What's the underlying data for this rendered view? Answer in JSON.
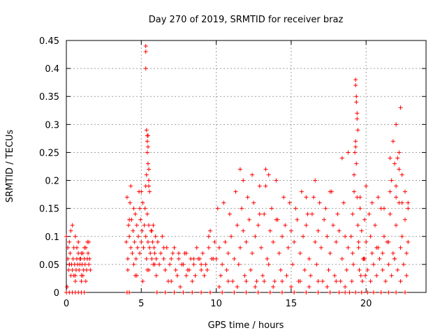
{
  "chart_data": {
    "type": "scatter",
    "title": "Day 270 of 2019, SRMTID for receiver braz",
    "xlabel": "GPS time / hours",
    "ylabel": "SRMTID / TECUs",
    "xlim": [
      0,
      24
    ],
    "ylim": [
      0,
      0.45
    ],
    "xticks": [
      0,
      5,
      10,
      15,
      20
    ],
    "xtick_labels": [
      "0",
      "5",
      "10",
      "15",
      "20"
    ],
    "yticks": [
      0,
      0.05,
      0.1,
      0.15,
      0.2,
      0.25,
      0.3,
      0.35,
      0.4,
      0.45
    ],
    "ytick_labels": [
      "0",
      "0.05",
      "0.1",
      "0.15",
      "0.2",
      "0.25",
      "0.3",
      "0.35",
      "0.4",
      "0.45"
    ],
    "grid": true,
    "marker": "+",
    "color": "#ff0000",
    "series": [
      {
        "name": "braz",
        "x": [
          0.0,
          0.1,
          0.15,
          0.2,
          0.25,
          0.3,
          0.35,
          0.4,
          0.45,
          0.5,
          0.55,
          0.6,
          0.65,
          0.7,
          0.75,
          0.8,
          0.85,
          0.9,
          0.95,
          1.0,
          1.05,
          1.1,
          1.15,
          1.2,
          1.25,
          1.3,
          1.35,
          1.4,
          1.45,
          1.5,
          1.55,
          1.6,
          0.05,
          0.2,
          0.4,
          0.6,
          0.8,
          1.0,
          1.2,
          1.4,
          0.3,
          0.7,
          1.1,
          0.1,
          0.5,
          0.9,
          1.3,
          0.2,
          0.6,
          1.0,
          1.5,
          4.0,
          4.05,
          4.1,
          4.15,
          4.2,
          4.25,
          4.3,
          4.35,
          4.4,
          4.45,
          4.5,
          4.55,
          4.6,
          4.65,
          4.7,
          4.75,
          4.8,
          4.85,
          4.9,
          4.95,
          5.0,
          5.05,
          5.1,
          5.15,
          5.2,
          5.25,
          5.3,
          5.35,
          5.4,
          5.45,
          5.5,
          5.55,
          5.6,
          5.65,
          5.7,
          5.75,
          5.8,
          5.85,
          5.9,
          5.95,
          6.0,
          4.1,
          4.3,
          4.5,
          4.7,
          4.9,
          5.1,
          5.3,
          5.5,
          5.7,
          5.9,
          4.2,
          4.6,
          5.0,
          5.4,
          5.8,
          5.3,
          5.3,
          5.3,
          5.35,
          5.4,
          5.4,
          5.45,
          5.45,
          5.5,
          5.5,
          5.4,
          5.35,
          5.45,
          5.5,
          5.55,
          6.1,
          6.3,
          6.5,
          6.7,
          6.9,
          7.1,
          7.3,
          7.5,
          7.7,
          7.9,
          8.1,
          8.3,
          8.5,
          8.7,
          8.9,
          9.1,
          9.3,
          9.5,
          9.7,
          9.9,
          6.2,
          6.6,
          7.0,
          7.4,
          7.8,
          8.2,
          8.6,
          9.0,
          9.4,
          9.8,
          6.4,
          6.8,
          7.2,
          7.6,
          8.0,
          8.4,
          8.8,
          9.2,
          9.6,
          6.0,
          6.5,
          7.0,
          7.5,
          8.0,
          8.5,
          9.0,
          9.5,
          10.0,
          10.2,
          10.4,
          10.6,
          10.8,
          11.0,
          11.2,
          11.4,
          11.6,
          11.8,
          12.0,
          12.2,
          12.4,
          12.6,
          12.8,
          13.0,
          13.2,
          13.4,
          13.6,
          13.8,
          14.0,
          14.2,
          14.4,
          14.6,
          14.8,
          15.0,
          15.2,
          15.4,
          15.6,
          15.8,
          16.0,
          16.2,
          16.4,
          16.6,
          16.8,
          17.0,
          17.2,
          17.4,
          17.6,
          17.8,
          18.0,
          18.2,
          18.4,
          18.6,
          18.8,
          10.1,
          10.5,
          10.9,
          11.3,
          11.7,
          12.1,
          12.5,
          12.9,
          13.3,
          13.7,
          14.1,
          14.5,
          14.9,
          15.3,
          15.7,
          16.1,
          16.5,
          16.9,
          17.3,
          17.7,
          18.1,
          18.5,
          10.3,
          10.7,
          11.1,
          11.5,
          11.9,
          12.3,
          12.7,
          13.1,
          13.5,
          13.9,
          14.3,
          14.7,
          15.1,
          15.5,
          15.9,
          16.3,
          16.7,
          17.1,
          17.5,
          17.9,
          18.3,
          18.7,
          10.2,
          10.8,
          11.4,
          12.0,
          12.6,
          13.2,
          13.8,
          14.4,
          15.0,
          15.6,
          16.2,
          16.8,
          17.4,
          18.0,
          18.6,
          11.6,
          11.8,
          12.4,
          12.9,
          13.3,
          13.5,
          14.0,
          16.0,
          16.6,
          17.6,
          18.4,
          18.8,
          19.0,
          19.1,
          19.2,
          19.25,
          19.3,
          19.35,
          19.4,
          19.45,
          19.5,
          19.6,
          19.7,
          19.8,
          19.9,
          20.0,
          20.2,
          20.4,
          20.6,
          20.8,
          21.0,
          21.2,
          21.4,
          21.6,
          21.8,
          22.0,
          22.2,
          22.4,
          22.6,
          22.8,
          19.3,
          19.3,
          19.35,
          19.35,
          19.4,
          19.4,
          19.45,
          19.3,
          19.05,
          19.15,
          19.55,
          19.65,
          19.75,
          19.85,
          19.95,
          20.1,
          20.3,
          20.5,
          20.7,
          20.9,
          21.1,
          21.3,
          21.5,
          21.7,
          21.9,
          22.1,
          22.3,
          22.5,
          22.7,
          21.6,
          21.8,
          21.9,
          22.0,
          22.1,
          22.2,
          22.3,
          22.2,
          22.0,
          21.7,
          22.4,
          22.6,
          22.8,
          19.2,
          19.6,
          20.0,
          20.4,
          20.8,
          21.2,
          21.6,
          22.0,
          22.4,
          22.8,
          19.1,
          19.5,
          19.9,
          20.3,
          20.7,
          21.1,
          21.5,
          21.9,
          22.3,
          22.7,
          4.05,
          4.2,
          6.05,
          6.6,
          7.2,
          7.8,
          8.4,
          9.0,
          9.6,
          10.4,
          11.2,
          12.0,
          12.8,
          13.6,
          14.4,
          15.2,
          16.0,
          16.8,
          17.6,
          18.2,
          18.6,
          18.9,
          19.3,
          19.7,
          20.1,
          20.5,
          21.0,
          21.5,
          22.0,
          22.6,
          0.0,
          0.2,
          0.4,
          0.6,
          0.8,
          1.0,
          1.2
        ],
        "y": [
          0.1,
          0.06,
          0.04,
          0.05,
          0.07,
          0.03,
          0.05,
          0.04,
          0.06,
          0.08,
          0.05,
          0.03,
          0.04,
          0.06,
          0.05,
          0.07,
          0.04,
          0.05,
          0.06,
          0.03,
          0.05,
          0.07,
          0.04,
          0.06,
          0.05,
          0.08,
          0.04,
          0.06,
          0.07,
          0.05,
          0.06,
          0.04,
          0.01,
          0.09,
          0.12,
          0.02,
          0.09,
          0.02,
          0.08,
          0.09,
          0.11,
          0.08,
          0.03,
          0.08,
          0.03,
          0.06,
          0.02,
          0.05,
          0.1,
          0.07,
          0.09,
          0.09,
          0.17,
          0.06,
          0.12,
          0.1,
          0.16,
          0.08,
          0.13,
          0.07,
          0.11,
          0.15,
          0.09,
          0.14,
          0.06,
          0.12,
          0.08,
          0.1,
          0.18,
          0.07,
          0.13,
          0.09,
          0.11,
          0.16,
          0.08,
          0.12,
          0.15,
          0.1,
          0.06,
          0.14,
          0.09,
          0.12,
          0.08,
          0.07,
          0.11,
          0.06,
          0.09,
          0.05,
          0.08,
          0.07,
          0.1,
          0.06,
          0.04,
          0.19,
          0.05,
          0.03,
          0.15,
          0.02,
          0.19,
          0.04,
          0.11,
          0.05,
          0.13,
          0.03,
          0.18,
          0.04,
          0.12,
          0.43,
          0.44,
          0.4,
          0.29,
          0.28,
          0.27,
          0.28,
          0.26,
          0.22,
          0.2,
          0.25,
          0.21,
          0.23,
          0.19,
          0.18,
          0.09,
          0.07,
          0.06,
          0.08,
          0.05,
          0.07,
          0.04,
          0.06,
          0.05,
          0.07,
          0.04,
          0.06,
          0.05,
          0.08,
          0.06,
          0.07,
          0.05,
          0.08,
          0.06,
          0.09,
          0.05,
          0.04,
          0.06,
          0.03,
          0.05,
          0.04,
          0.03,
          0.05,
          0.04,
          0.06,
          0.1,
          0.02,
          0.08,
          0.01,
          0.07,
          0.02,
          0.06,
          0.03,
          0.11,
          0.03,
          0.08,
          0.02,
          0.07,
          0.03,
          0.06,
          0.04,
          0.1,
          0.06,
          0.08,
          0.05,
          0.09,
          0.07,
          0.1,
          0.06,
          0.12,
          0.08,
          0.11,
          0.09,
          0.13,
          0.07,
          0.1,
          0.12,
          0.08,
          0.14,
          0.06,
          0.11,
          0.09,
          0.13,
          0.07,
          0.1,
          0.12,
          0.08,
          0.11,
          0.09,
          0.13,
          0.07,
          0.1,
          0.12,
          0.06,
          0.14,
          0.09,
          0.11,
          0.08,
          0.13,
          0.1,
          0.07,
          0.12,
          0.09,
          0.11,
          0.06,
          0.1,
          0.08,
          0.15,
          0.16,
          0.14,
          0.18,
          0.15,
          0.17,
          0.16,
          0.14,
          0.19,
          0.15,
          0.13,
          0.17,
          0.16,
          0.15,
          0.18,
          0.14,
          0.17,
          0.16,
          0.15,
          0.18,
          0.14,
          0.16,
          0.03,
          0.04,
          0.02,
          0.05,
          0.03,
          0.04,
          0.02,
          0.03,
          0.05,
          0.02,
          0.04,
          0.03,
          0.05,
          0.02,
          0.04,
          0.03,
          0.05,
          0.02,
          0.04,
          0.03,
          0.02,
          0.04,
          0.01,
          0.02,
          0.01,
          0.02,
          0.01,
          0.02,
          0.01,
          0.02,
          0.01,
          0.02,
          0.01,
          0.02,
          0.01,
          0.02,
          0.01,
          0.22,
          0.2,
          0.21,
          0.19,
          0.22,
          0.21,
          0.2,
          0.17,
          0.2,
          0.18,
          0.24,
          0.25,
          0.1,
          0.14,
          0.21,
          0.25,
          0.27,
          0.23,
          0.17,
          0.12,
          0.08,
          0.15,
          0.11,
          0.06,
          0.13,
          0.09,
          0.14,
          0.07,
          0.12,
          0.08,
          0.15,
          0.1,
          0.09,
          0.14,
          0.07,
          0.12,
          0.16,
          0.1,
          0.13,
          0.09,
          0.38,
          0.37,
          0.35,
          0.34,
          0.32,
          0.31,
          0.29,
          0.26,
          0.02,
          0.05,
          0.04,
          0.03,
          0.02,
          0.06,
          0.03,
          0.04,
          0.02,
          0.05,
          0.03,
          0.06,
          0.04,
          0.02,
          0.05,
          0.03,
          0.06,
          0.04,
          0.02,
          0.05,
          0.03,
          0.24,
          0.27,
          0.23,
          0.3,
          0.24,
          0.25,
          0.33,
          0.22,
          0.19,
          0.2,
          0.21,
          0.18,
          0.16,
          0.18,
          0.17,
          0.19,
          0.16,
          0.17,
          0.15,
          0.18,
          0.17,
          0.16,
          0.15,
          0.07,
          0.09,
          0.06,
          0.1,
          0.08,
          0.07,
          0.09,
          0.06,
          0.08,
          0.07,
          0,
          0,
          0,
          0,
          0,
          0,
          0,
          0,
          0,
          0,
          0,
          0,
          0,
          0,
          0,
          0,
          0,
          0,
          0,
          0,
          0,
          0,
          0,
          0,
          0,
          0,
          0,
          0,
          0,
          0,
          0,
          0,
          0,
          0,
          0,
          0,
          0
        ]
      }
    ]
  }
}
